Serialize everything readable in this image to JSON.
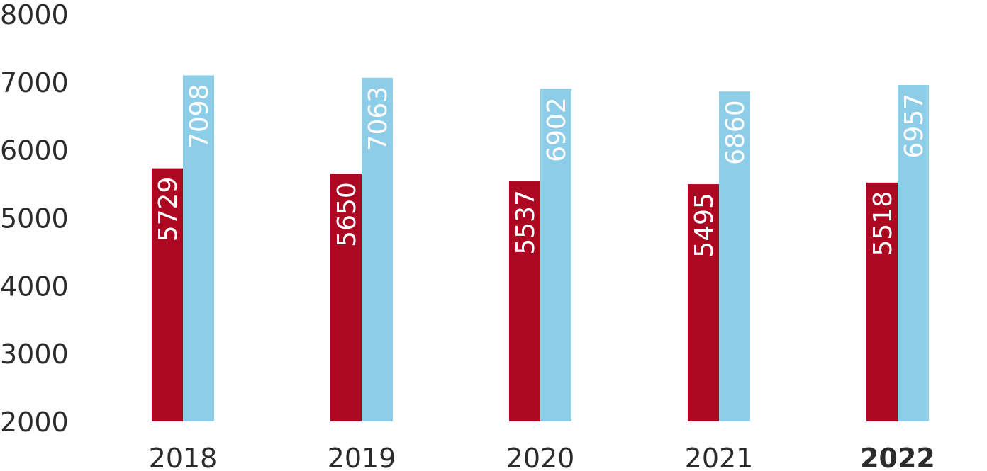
{
  "chart_data": {
    "type": "bar",
    "title": "",
    "xlabel": "",
    "ylabel": "",
    "ylim": [
      2000,
      8000
    ],
    "yticks": [
      "2000",
      "3000",
      "4000",
      "5000",
      "6000",
      "7000",
      "8000"
    ],
    "categories": [
      "2018",
      "2019",
      "2020",
      "2021",
      "2022"
    ],
    "highlighted_category": "2022",
    "grid": false,
    "legend": "none",
    "series": [
      {
        "color": "#ad0822",
        "values": [
          5729,
          5650,
          5537,
          5495,
          5518
        ],
        "labels": [
          "5729",
          "5650",
          "5537",
          "5495",
          "5518"
        ]
      },
      {
        "color": "#8ecde8",
        "values": [
          7098,
          7063,
          6902,
          6860,
          6957
        ],
        "labels": [
          "7098",
          "7063",
          "6902",
          "6860",
          "6957"
        ]
      }
    ]
  }
}
